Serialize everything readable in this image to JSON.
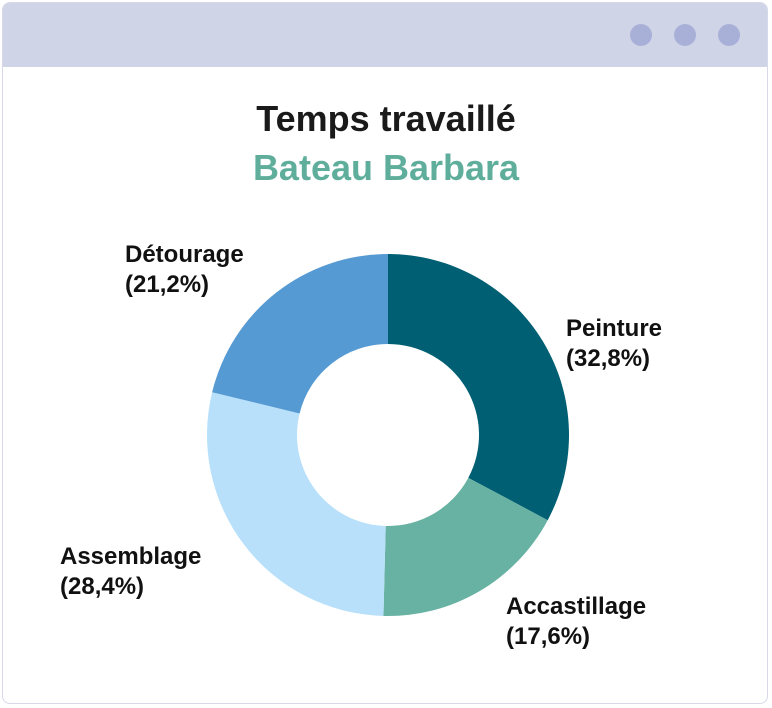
{
  "window": {
    "controls": [
      "dot",
      "dot",
      "dot"
    ],
    "titlebar_color": "#cfd4e7",
    "dot_color": "#a8b0d8"
  },
  "chart_data": {
    "type": "pie",
    "donut": true,
    "title": "Temps travaillé",
    "subtitle": "Bateau Barbara",
    "slices": [
      {
        "label": "Peinture",
        "value": 32.8,
        "value_label": "(32,8%)",
        "color": "#005f73"
      },
      {
        "label": "Accastillage",
        "value": 17.6,
        "value_label": "(17,6%)",
        "color": "#67b2a2"
      },
      {
        "label": "Assemblage",
        "value": 28.4,
        "value_label": "(28,4%)",
        "color": "#b8e0fa"
      },
      {
        "label": "Détourage",
        "value": 21.2,
        "value_label": "(21,2%)",
        "color": "#569ad3"
      }
    ],
    "start": "12 o'clock",
    "direction": "clockwise",
    "legend": "none"
  }
}
